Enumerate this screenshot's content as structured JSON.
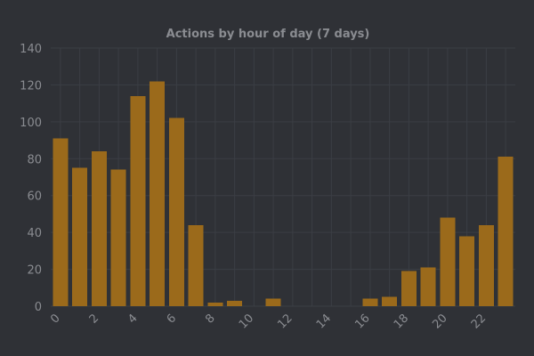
{
  "chart_data": {
    "type": "bar",
    "title": "Actions by hour of day (7 days)",
    "xlabel": "",
    "ylabel": "",
    "categories": [
      0,
      1,
      2,
      3,
      4,
      5,
      6,
      7,
      8,
      9,
      10,
      11,
      12,
      13,
      14,
      15,
      16,
      17,
      18,
      19,
      20,
      21,
      22,
      23
    ],
    "values": [
      91,
      75,
      84,
      74,
      114,
      122,
      102,
      44,
      2,
      3,
      0,
      4,
      0,
      0,
      0,
      0,
      4,
      5,
      19,
      21,
      48,
      38,
      44,
      81
    ],
    "x_tick_labels": [
      "0",
      "2",
      "4",
      "6",
      "8",
      "10",
      "12",
      "14",
      "16",
      "18",
      "20",
      "22"
    ],
    "y_tick_labels": [
      "0",
      "20",
      "40",
      "60",
      "80",
      "100",
      "120",
      "140"
    ],
    "ylim": [
      0,
      140
    ],
    "grid": true,
    "bar_color": "#9b6a1b",
    "background_color": "#2f3136",
    "grid_color": "#3b3e44",
    "text_color": "#8a8c91"
  }
}
